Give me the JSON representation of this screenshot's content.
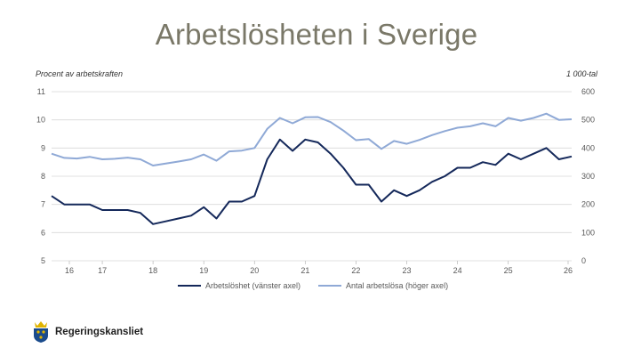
{
  "page": {
    "title": "Arbetslösheten i Sverige",
    "left_axis_title": "Procent av arbetskraften",
    "right_axis_title": "1 000-tal",
    "logo_text": "Regeringskansliet"
  },
  "colors": {
    "title": "#7a7868",
    "series_dark": "#14285a",
    "series_light": "#8fa9d6",
    "grid": "#d9d9d9",
    "logo_blue": "#1a4b8c",
    "logo_gold": "#e0b400"
  },
  "chart_data": {
    "type": "line",
    "x_tick_labels": [
      "16",
      "17",
      "18",
      "19",
      "20",
      "21",
      "22",
      "23",
      "24",
      "25",
      "26"
    ],
    "x_range": [
      2015.75,
      2026.0
    ],
    "legend_placement": "bottom-center",
    "grid": true,
    "left_axis": {
      "label": "Procent av arbetskraften",
      "ylim": [
        5,
        11
      ],
      "ticks": [
        "5",
        "6",
        "7",
        "8",
        "9",
        "10",
        "11"
      ]
    },
    "right_axis": {
      "label": "1 000-tal",
      "ylim": [
        0,
        600
      ],
      "ticks": [
        "0",
        "100",
        "200",
        "300",
        "400",
        "500",
        "600"
      ]
    },
    "series": [
      {
        "name": "Arbetslöshet (vänster axel)",
        "axis": "left",
        "x": [
          2015.75,
          2016.0,
          2016.25,
          2016.5,
          2016.75,
          2017.0,
          2017.25,
          2017.5,
          2017.75,
          2018.0,
          2018.25,
          2018.5,
          2018.75,
          2019.0,
          2019.25,
          2019.5,
          2019.75,
          2020.0,
          2020.25,
          2020.5,
          2020.75,
          2021.0,
          2021.25,
          2021.5,
          2021.75,
          2022.0,
          2022.25,
          2022.5,
          2022.75,
          2023.0,
          2023.25,
          2023.5,
          2023.75,
          2024.0,
          2024.25,
          2024.5,
          2024.75,
          2025.0,
          2025.25,
          2025.5,
          2025.75,
          2026.0
        ],
        "values": [
          7.3,
          7.0,
          7.0,
          7.0,
          6.8,
          6.8,
          6.8,
          6.7,
          6.3,
          6.4,
          6.5,
          6.6,
          6.9,
          6.5,
          7.1,
          7.1,
          7.3,
          8.6,
          9.3,
          8.9,
          9.3,
          9.2,
          8.8,
          8.3,
          7.7,
          7.7,
          7.1,
          7.5,
          7.3,
          7.5,
          7.8,
          8.0,
          8.3,
          8.3,
          8.5,
          8.4,
          8.8,
          8.6,
          8.8,
          9.0,
          8.6,
          8.7
        ]
      },
      {
        "name": "Antal arbetslösa (höger axel)",
        "axis": "right",
        "x": [
          2015.75,
          2016.0,
          2016.25,
          2016.5,
          2016.75,
          2017.0,
          2017.25,
          2017.5,
          2017.75,
          2018.0,
          2018.25,
          2018.5,
          2018.75,
          2019.0,
          2019.25,
          2019.5,
          2019.75,
          2020.0,
          2020.25,
          2020.5,
          2020.75,
          2021.0,
          2021.25,
          2021.5,
          2021.75,
          2022.0,
          2022.25,
          2022.5,
          2022.75,
          2023.0,
          2023.25,
          2023.5,
          2023.75,
          2024.0,
          2024.25,
          2024.5,
          2024.75,
          2025.0,
          2025.25,
          2025.5,
          2025.75,
          2026.0
        ],
        "values": [
          380,
          365,
          363,
          369,
          360,
          362,
          366,
          360,
          338,
          345,
          352,
          360,
          377,
          355,
          388,
          391,
          400,
          468,
          507,
          488,
          509,
          510,
          492,
          462,
          428,
          432,
          397,
          425,
          415,
          429,
          446,
          460,
          472,
          477,
          488,
          477,
          507,
          497,
          507,
          522,
          500,
          502
        ]
      }
    ]
  }
}
